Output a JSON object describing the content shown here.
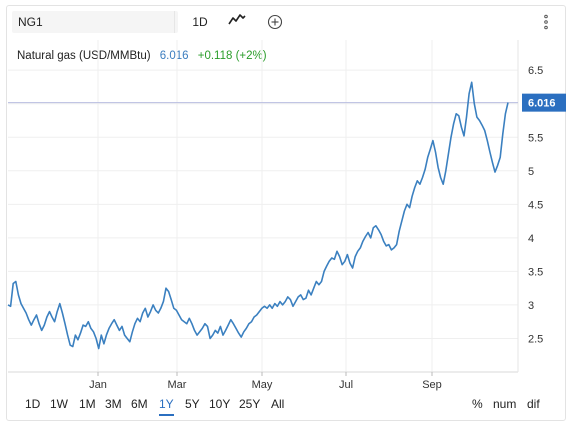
{
  "toolbar": {
    "symbol": "NG1",
    "interval": "1D",
    "chart_type_icon": "line-chart-icon",
    "add_icon": "plus-circle-icon",
    "menu_icon": "vertical-dots-icon"
  },
  "legend": {
    "name": "Natural gas (USD/MMBtu)",
    "price": "6.016",
    "change": "+0.118 (+2%)"
  },
  "price_tag": "6.016",
  "ranges": [
    "1D",
    "1W",
    "1M",
    "3M",
    "6M",
    "1Y",
    "5Y",
    "10Y",
    "25Y",
    "All"
  ],
  "active_range": "1Y",
  "modes": [
    "%",
    "num",
    "dif"
  ],
  "colors": {
    "line": "#3b80c0",
    "accent": "#2b6fc0",
    "price_line": "#b8bde0",
    "change_positive": "#2a9d2a"
  },
  "chart_data": {
    "type": "line",
    "title": "",
    "xlabel": "",
    "ylabel": "",
    "x_ticks": [
      "Jan",
      "Mar",
      "May",
      "Jul",
      "Sep"
    ],
    "y_ticks": [
      2.5,
      3,
      3.5,
      4,
      4.5,
      5,
      5.5,
      6,
      6.5
    ],
    "ylim": [
      2.0,
      6.95
    ],
    "grid": true,
    "current_value": 6.016,
    "series": [
      {
        "values": [
          3.0,
          2.98,
          3.32,
          3.35,
          3.15,
          3.02,
          2.95,
          2.88,
          2.78,
          2.7,
          2.78,
          2.85,
          2.72,
          2.62,
          2.7,
          2.82,
          2.9,
          2.82,
          2.75,
          2.9,
          3.02,
          2.88,
          2.72,
          2.55,
          2.4,
          2.38,
          2.55,
          2.48,
          2.58,
          2.7,
          2.68,
          2.75,
          2.65,
          2.6,
          2.5,
          2.35,
          2.55,
          2.42,
          2.55,
          2.65,
          2.72,
          2.78,
          2.7,
          2.62,
          2.68,
          2.55,
          2.5,
          2.45,
          2.6,
          2.72,
          2.8,
          2.75,
          2.88,
          2.95,
          2.82,
          2.9,
          3.0,
          2.92,
          2.88,
          2.95,
          3.05,
          3.25,
          3.2,
          3.08,
          2.95,
          2.92,
          2.85,
          2.78,
          2.75,
          2.72,
          2.8,
          2.72,
          2.62,
          2.55,
          2.6,
          2.65,
          2.72,
          2.68,
          2.5,
          2.55,
          2.62,
          2.58,
          2.68,
          2.55,
          2.62,
          2.7,
          2.78,
          2.72,
          2.65,
          2.58,
          2.52,
          2.6,
          2.65,
          2.72,
          2.75,
          2.82,
          2.85,
          2.9,
          2.95,
          2.98,
          2.95,
          3.0,
          2.95,
          3.02,
          2.98,
          3.05,
          3.0,
          3.05,
          3.12,
          3.08,
          2.98,
          3.05,
          3.12,
          3.15,
          3.08,
          3.1,
          3.22,
          3.15,
          3.25,
          3.35,
          3.3,
          3.35,
          3.5,
          3.58,
          3.65,
          3.7,
          3.68,
          3.8,
          3.72,
          3.6,
          3.65,
          3.75,
          3.62,
          3.55,
          3.72,
          3.8,
          3.85,
          3.95,
          4.02,
          4.08,
          4.0,
          4.15,
          4.18,
          4.12,
          4.05,
          3.95,
          3.88,
          3.9,
          3.82,
          3.85,
          3.9,
          4.1,
          4.25,
          4.4,
          4.5,
          4.45,
          4.62,
          4.75,
          4.85,
          4.8,
          4.9,
          5.02,
          5.2,
          5.32,
          5.45,
          5.28,
          5.05,
          4.9,
          4.8,
          5.0,
          5.25,
          5.5,
          5.7,
          5.85,
          5.82,
          5.65,
          5.52,
          5.8,
          6.15,
          6.32,
          6.0,
          5.8,
          5.75,
          5.68,
          5.6,
          5.45,
          5.28,
          5.12,
          4.98,
          5.08,
          5.2,
          5.55,
          5.85,
          6.016
        ]
      }
    ]
  }
}
